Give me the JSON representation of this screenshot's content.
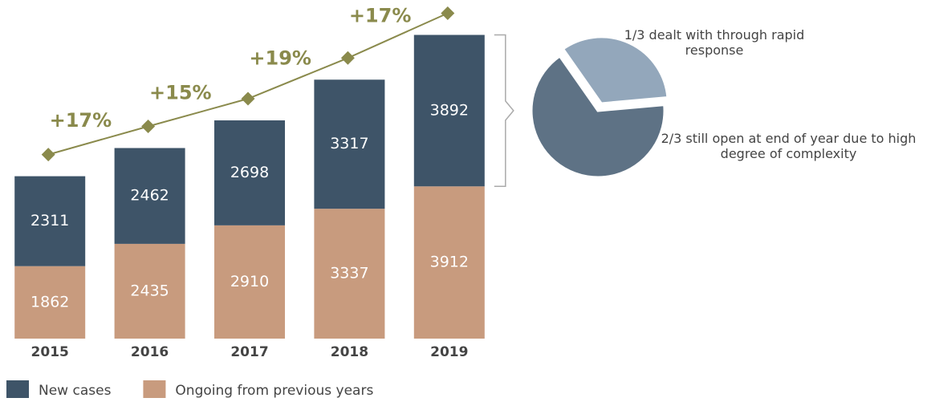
{
  "chart_data": [
    {
      "type": "bar",
      "categories": [
        "2015",
        "2016",
        "2017",
        "2018",
        "2019"
      ],
      "series": [
        {
          "name": "New cases",
          "color": "#3e5468",
          "values": [
            2311,
            2462,
            2698,
            3317,
            3892
          ]
        },
        {
          "name": "Ongoing from previous years",
          "color": "#c89b7e",
          "values": [
            1862,
            2435,
            2910,
            3337,
            3912
          ]
        }
      ],
      "ylim": [
        0,
        8000
      ],
      "line_color": "#8a8a4c",
      "annotations": [
        "+17%",
        "+15%",
        "+19%",
        "+17%"
      ]
    },
    {
      "type": "pie",
      "categories": [
        "1/3 dealt with through rapid response",
        "2/3 still open at end of year due to high degree of complexity"
      ],
      "values": [
        0.333,
        0.667
      ],
      "colors": [
        "#93a7bb",
        "#5e7285"
      ]
    }
  ]
}
